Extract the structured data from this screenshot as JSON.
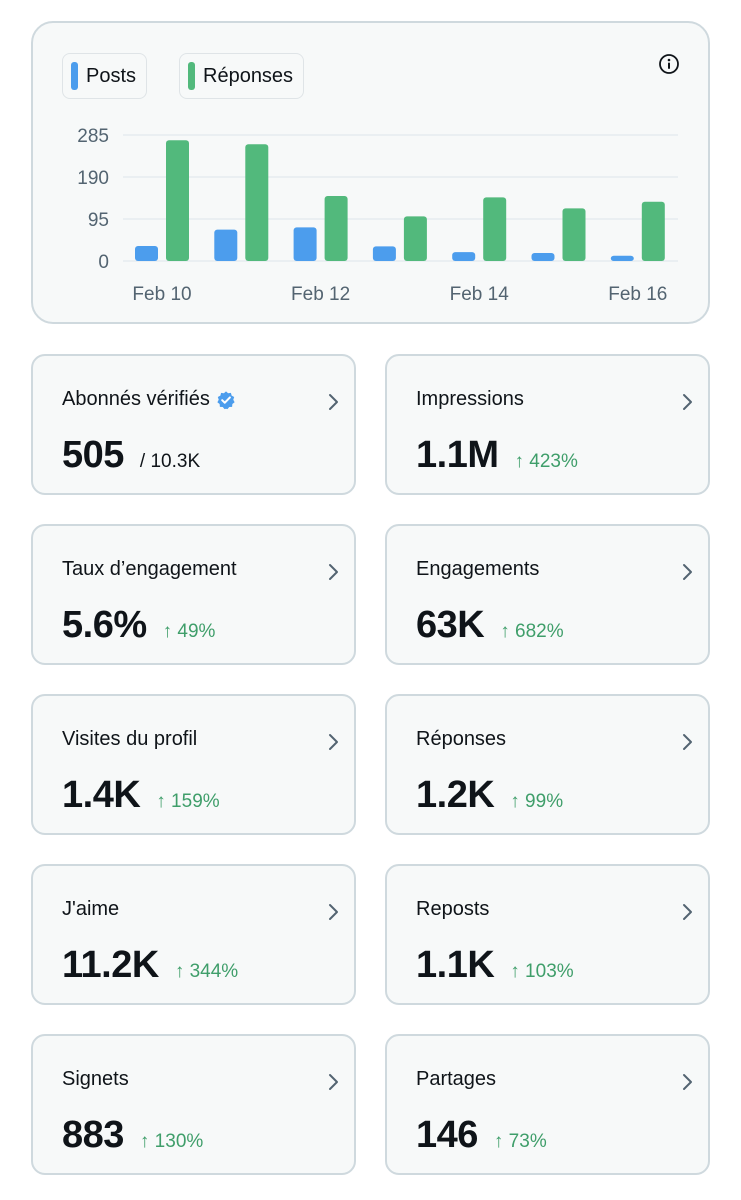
{
  "chart": {
    "legend": [
      {
        "label": "Posts",
        "color": "#4c9ded"
      },
      {
        "label": "Réponses",
        "color": "#52b97c"
      }
    ]
  },
  "chart_data": {
    "type": "bar",
    "categories": [
      "Feb 10",
      "Feb 11",
      "Feb 12",
      "Feb 13",
      "Feb 14",
      "Feb 15",
      "Feb 16"
    ],
    "x_tick_labels": [
      "Feb 10",
      "Feb 12",
      "Feb 14",
      "Feb 16"
    ],
    "y_ticks": [
      "285",
      "190",
      "95",
      "0"
    ],
    "ylim": [
      0,
      285
    ],
    "grid": true,
    "legend_position": "top-left",
    "series": [
      {
        "name": "Posts",
        "color": "#4c9ded",
        "values": [
          34,
          71,
          76,
          33,
          20,
          18,
          12
        ]
      },
      {
        "name": "Réponses",
        "color": "#52b97c",
        "values": [
          273,
          264,
          147,
          101,
          144,
          119,
          134
        ]
      }
    ]
  },
  "stats": [
    {
      "label": "Abonnés vérifiés",
      "value": "505",
      "total": "/ 10.3K",
      "verified": true
    },
    {
      "label": "Impressions",
      "value": "1.1M",
      "delta": "↑ 423%"
    },
    {
      "label": "Taux d’engagement",
      "value": "5.6%",
      "delta": "↑ 49%"
    },
    {
      "label": "Engagements",
      "value": "63K",
      "delta": "↑ 682%"
    },
    {
      "label": "Visites du profil",
      "value": "1.4K",
      "delta": "↑ 159%"
    },
    {
      "label": "Réponses",
      "value": "1.2K",
      "delta": "↑ 99%"
    },
    {
      "label": "J'aime",
      "value": "11.2K",
      "delta": "↑ 344%"
    },
    {
      "label": "Reposts",
      "value": "1.1K",
      "delta": "↑ 103%"
    },
    {
      "label": "Signets",
      "value": "883",
      "delta": "↑ 130%"
    },
    {
      "label": "Partages",
      "value": "146",
      "delta": "↑ 73%"
    }
  ],
  "icons": {
    "info": "info-circle-icon",
    "chevron": "chevron-right-icon",
    "verified": "verified-badge-icon"
  }
}
